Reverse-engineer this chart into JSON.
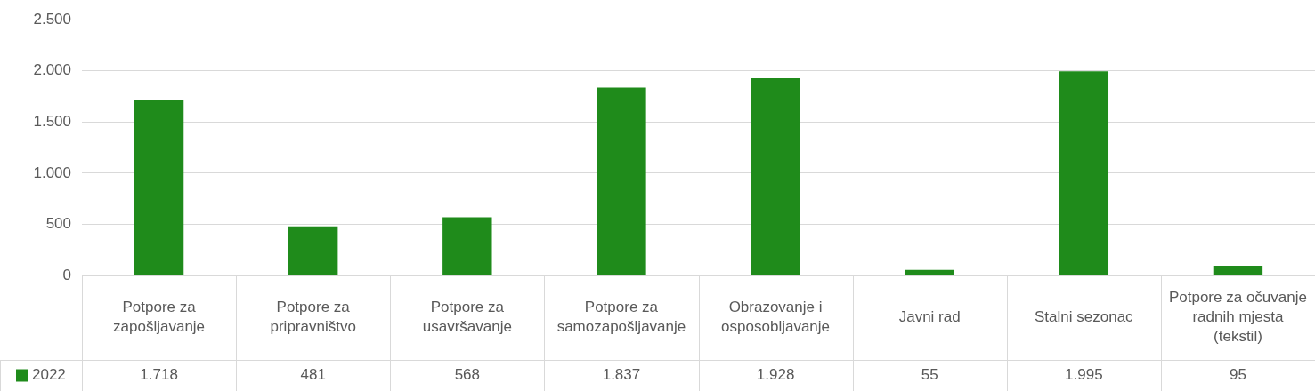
{
  "chart_data": {
    "type": "bar",
    "categories": [
      "Potpore za zapošljavanje",
      "Potpore za pripravništvo",
      "Potpore za usavršavanje",
      "Potpore za samozapošljavanje",
      "Obrazovanje i osposobljavanje",
      "Javni rad",
      "Stalni sezonac",
      "Potpore za očuvanje radnih mjesta (tekstil)"
    ],
    "series": [
      {
        "name": "2022",
        "color": "#1f8b1b",
        "values": [
          1718,
          481,
          568,
          1837,
          1928,
          55,
          1995,
          95
        ],
        "value_labels": [
          "1.718",
          "481",
          "568",
          "1.837",
          "1.928",
          "55",
          "1.995",
          "95"
        ]
      }
    ],
    "ylim": [
      0,
      2500
    ],
    "yticks": [
      0,
      {
        "value": 500,
        "label": "500"
      },
      {
        "value": 1000,
        "label": "1.000"
      },
      {
        "value": 1500,
        "label": "1.500"
      },
      {
        "value": 2000,
        "label": "2.000"
      },
      {
        "value": 2500,
        "label": "2.500"
      }
    ],
    "grid": "y",
    "legend": "bottom",
    "data_labels": true
  }
}
